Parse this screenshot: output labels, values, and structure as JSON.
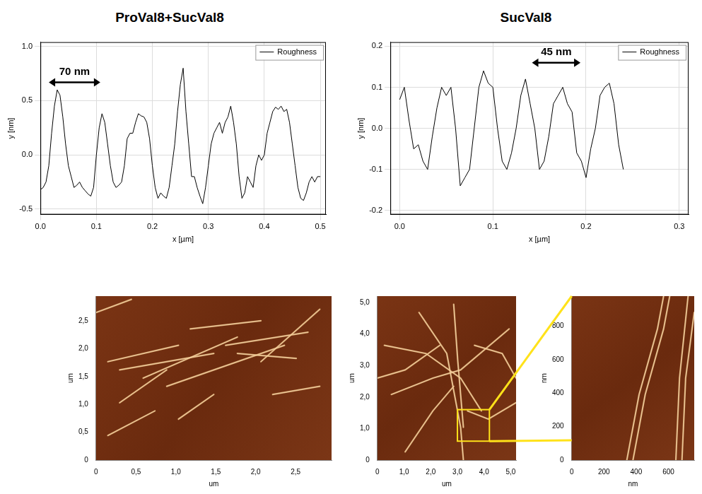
{
  "panel_titles": [
    "ProVal8+SucVal8",
    "SucVal8"
  ],
  "chart_data": [
    {
      "type": "line",
      "x_label": "x [µm]",
      "y_label": "y [nm]",
      "grid": true,
      "legend": "upper right",
      "xlim": [
        0,
        0.51
      ],
      "xticks": [
        {
          "value": 0,
          "label": "0.0"
        },
        0.1,
        0.2,
        0.3,
        0.4,
        0.5
      ],
      "ylim": [
        -0.55,
        1.04
      ],
      "yticks": [
        -0.5,
        {
          "value": 0,
          "label": "0.0"
        },
        0.5,
        {
          "value": 1,
          "label": "1.0"
        }
      ],
      "annotations": [
        {
          "text": "70 nm",
          "x": [
            0.015,
            0.107
          ],
          "y": 0.67
        }
      ],
      "x": [
        0,
        0.005,
        0.01,
        0.015,
        0.02,
        0.025,
        0.03,
        0.035,
        0.04,
        0.045,
        0.05,
        0.055,
        0.06,
        0.065,
        0.07,
        0.075,
        0.08,
        0.085,
        0.09,
        0.095,
        0.1,
        0.105,
        0.11,
        0.115,
        0.12,
        0.125,
        0.13,
        0.135,
        0.14,
        0.145,
        0.15,
        0.155,
        0.16,
        0.165,
        0.17,
        0.175,
        0.18,
        0.185,
        0.19,
        0.195,
        0.2,
        0.205,
        0.21,
        0.215,
        0.22,
        0.225,
        0.23,
        0.235,
        0.24,
        0.245,
        0.25,
        0.255,
        0.26,
        0.265,
        0.27,
        0.275,
        0.28,
        0.285,
        0.29,
        0.295,
        0.3,
        0.305,
        0.31,
        0.315,
        0.32,
        0.325,
        0.33,
        0.335,
        0.34,
        0.345,
        0.35,
        0.355,
        0.36,
        0.365,
        0.37,
        0.375,
        0.38,
        0.385,
        0.39,
        0.395,
        0.4,
        0.405,
        0.41,
        0.415,
        0.42,
        0.425,
        0.43,
        0.435,
        0.44,
        0.445,
        0.45,
        0.455,
        0.46,
        0.465,
        0.47,
        0.475,
        0.48,
        0.485,
        0.49,
        0.495,
        0.5
      ],
      "series": [
        {
          "name": "Roughness",
          "color": "#000000",
          "line_style": "solid",
          "marker": "none",
          "values": [
            -0.32,
            -0.3,
            -0.25,
            -0.1,
            0.2,
            0.45,
            0.6,
            0.55,
            0.35,
            0.1,
            -0.1,
            -0.2,
            -0.3,
            -0.28,
            -0.25,
            -0.3,
            -0.33,
            -0.36,
            -0.38,
            -0.3,
            0.0,
            0.25,
            0.38,
            0.3,
            0.1,
            -0.1,
            -0.25,
            -0.3,
            -0.28,
            -0.25,
            -0.1,
            0.15,
            0.2,
            0.2,
            0.3,
            0.38,
            0.36,
            0.35,
            0.3,
            0.15,
            -0.1,
            -0.3,
            -0.4,
            -0.35,
            -0.38,
            -0.4,
            -0.3,
            -0.1,
            0.1,
            0.4,
            0.65,
            0.8,
            0.4,
            0.1,
            -0.2,
            -0.2,
            -0.3,
            -0.38,
            -0.45,
            -0.3,
            -0.1,
            0.1,
            0.2,
            0.25,
            0.3,
            0.2,
            0.3,
            0.35,
            0.45,
            0.3,
            0.1,
            -0.2,
            -0.4,
            -0.35,
            -0.2,
            -0.25,
            -0.3,
            -0.1,
            0.0,
            -0.05,
            0.0,
            0.2,
            0.3,
            0.4,
            0.44,
            0.42,
            0.45,
            0.4,
            0.42,
            0.3,
            0.1,
            -0.1,
            -0.3,
            -0.4,
            -0.42,
            -0.35,
            -0.25,
            -0.2,
            -0.25,
            -0.2,
            -0.2
          ]
        }
      ]
    },
    {
      "type": "line",
      "x_label": "x [µm]",
      "y_label": "y [nm]",
      "grid": true,
      "legend": "upper right",
      "xlim": [
        -0.01,
        0.31
      ],
      "xticks": [
        {
          "value": 0,
          "label": "0.0"
        },
        0.1,
        0.2,
        0.3
      ],
      "ylim": [
        -0.21,
        0.21
      ],
      "yticks": [
        -0.2,
        -0.1,
        {
          "value": 0,
          "label": "0.0"
        },
        0.1,
        0.2
      ],
      "annotations": [
        {
          "text": "45 nm",
          "x": [
            0.142,
            0.194
          ],
          "y": 0.16
        }
      ],
      "x": [
        0,
        0.005,
        0.01,
        0.015,
        0.02,
        0.025,
        0.03,
        0.035,
        0.04,
        0.045,
        0.05,
        0.055,
        0.06,
        0.065,
        0.07,
        0.075,
        0.08,
        0.085,
        0.09,
        0.095,
        0.1,
        0.105,
        0.11,
        0.115,
        0.12,
        0.125,
        0.13,
        0.135,
        0.14,
        0.145,
        0.15,
        0.155,
        0.16,
        0.165,
        0.17,
        0.175,
        0.18,
        0.185,
        0.19,
        0.195,
        0.2,
        0.205,
        0.21,
        0.215,
        0.22,
        0.225,
        0.23,
        0.235,
        0.24
      ],
      "series": [
        {
          "name": "Roughness",
          "color": "#000000",
          "line_style": "solid",
          "marker": "none",
          "values": [
            0.07,
            0.1,
            0.02,
            -0.05,
            -0.04,
            -0.08,
            -0.1,
            -0.02,
            0.05,
            0.1,
            0.08,
            0.1,
            0.0,
            -0.14,
            -0.12,
            -0.1,
            0.0,
            0.1,
            0.14,
            0.11,
            0.1,
            0.0,
            -0.08,
            -0.1,
            -0.06,
            0.0,
            0.08,
            0.12,
            0.06,
            0.0,
            -0.1,
            -0.08,
            -0.02,
            0.06,
            0.08,
            0.1,
            0.06,
            0.04,
            -0.06,
            -0.08,
            -0.12,
            -0.05,
            0.0,
            0.08,
            0.1,
            0.11,
            0.06,
            -0.04,
            -0.1
          ]
        }
      ]
    },
    {
      "type": "image",
      "x_label": "um",
      "y_label": "um",
      "grid": false,
      "xlim": [
        0,
        2.95
      ],
      "xticks": [
        0,
        {
          "value": 0.5,
          "label": "0,5"
        },
        {
          "value": 1,
          "label": "1,0"
        },
        {
          "value": 1.5,
          "label": "1,5"
        },
        {
          "value": 2,
          "label": "2,0"
        },
        {
          "value": 2.5,
          "label": "2,5"
        }
      ],
      "ylim": [
        0,
        2.95
      ],
      "yticks": [
        0,
        {
          "value": 0.5,
          "label": "0,5"
        },
        {
          "value": 1,
          "label": "1,0"
        },
        {
          "value": 1.5,
          "label": "1,5"
        },
        {
          "value": 2,
          "label": "2,0"
        },
        {
          "value": 2.5,
          "label": "2,5"
        }
      ]
    },
    {
      "type": "image",
      "x_label": "um",
      "y_label": "um",
      "grid": false,
      "xlim": [
        0,
        5.2
      ],
      "xticks": [
        0,
        {
          "value": 1,
          "label": "1,0"
        },
        {
          "value": 2,
          "label": "2,0"
        },
        {
          "value": 3,
          "label": "3,0"
        },
        {
          "value": 4,
          "label": "4,0"
        },
        {
          "value": 5,
          "label": "5,0"
        }
      ],
      "ylim": [
        0,
        5.2
      ],
      "yticks": [
        0,
        {
          "value": 1,
          "label": "1,0"
        },
        {
          "value": 2,
          "label": "2,0"
        },
        {
          "value": 3,
          "label": "3,0"
        },
        {
          "value": 4,
          "label": "4,0"
        },
        {
          "value": 5,
          "label": "5,0"
        }
      ],
      "inset_region": {
        "x": [
          3.0,
          4.2
        ],
        "y": [
          0.6,
          1.6
        ]
      }
    },
    {
      "type": "image",
      "x_label": "nm",
      "y_label": "nm",
      "grid": false,
      "xlim": [
        0,
        760
      ],
      "xticks": [
        0,
        200,
        400,
        600
      ],
      "ylim": [
        0,
        980
      ],
      "yticks": [
        0,
        200,
        400,
        600,
        800
      ]
    }
  ]
}
